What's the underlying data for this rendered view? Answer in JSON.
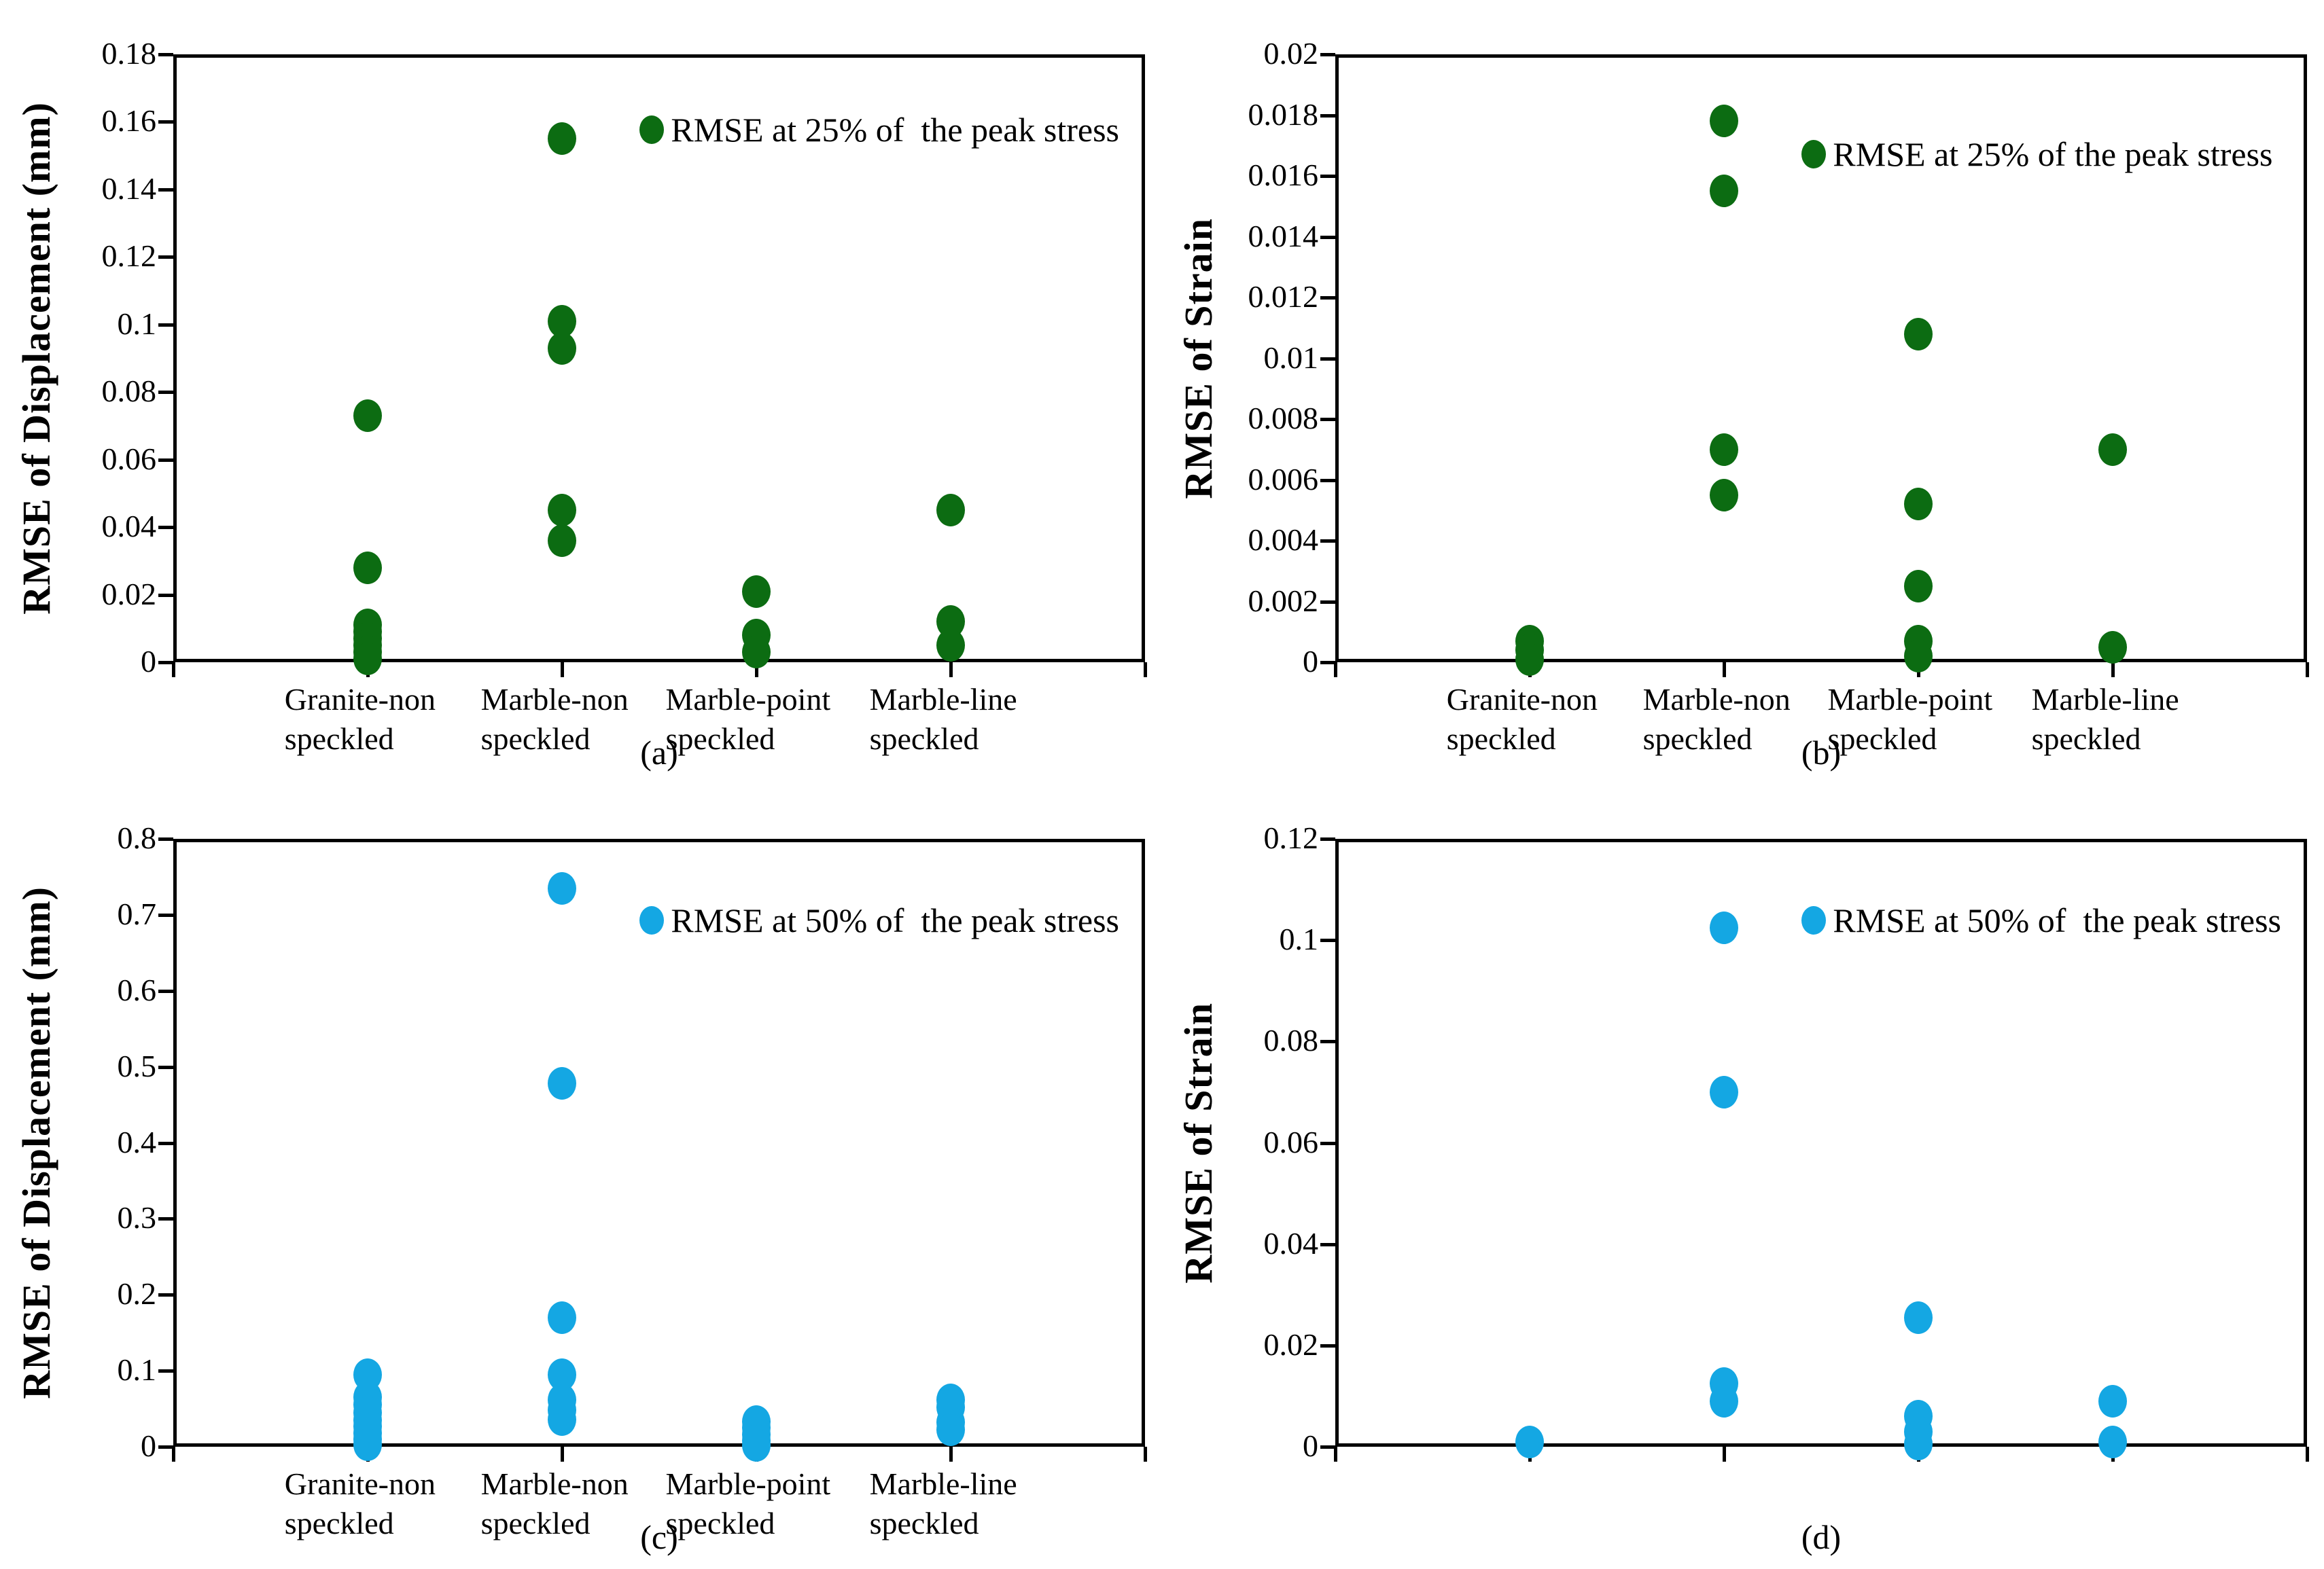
{
  "figure": {
    "description": "Four scatter plots of RMSE values for four specimen preparation types",
    "categories_shared": [
      "Granite-non speckled",
      "Marble-non speckled",
      "Marble-point speckled",
      "Marble-line speckled"
    ]
  },
  "colors": {
    "green_25pct": "#0c6c12",
    "blue_50pct": "#14a7e3",
    "axis": "#000000",
    "background": "#ffffff"
  },
  "chart_data": [
    {
      "type": "scatter",
      "caption": "(a)",
      "ylabel": "RMSE of Displacement (mm)",
      "xlabel": "",
      "ylim": [
        0,
        0.18
      ],
      "yticks": [
        "0",
        "0.02",
        "0.04",
        "0.06",
        "0.08",
        "0.1",
        "0.12",
        "0.14",
        "0.16",
        "0.18"
      ],
      "grid": false,
      "legend": "RMSE at 25% of  the peak stress",
      "legend_position": "inside-top-right",
      "legend_pos": {
        "x_frac": 0.48,
        "y_frac": 0.095
      },
      "marker_color": "#0c6c12",
      "show_category_labels": true,
      "categories": [
        [
          "Granite-non",
          "speckled"
        ],
        [
          "Marble-non",
          "speckled"
        ],
        [
          "Marble-point",
          "speckled"
        ],
        [
          "Marble-line",
          "speckled"
        ]
      ],
      "series": [
        {
          "name": "RMSE at 25% of the peak stress",
          "points_by_category": [
            [
              0.073,
              0.028,
              0.011,
              0.009,
              0.007,
              0.005,
              0.003,
              0.001
            ],
            [
              0.155,
              0.101,
              0.093,
              0.045,
              0.036
            ],
            [
              0.021,
              0.008,
              0.003
            ],
            [
              0.045,
              0.012,
              0.005
            ]
          ]
        }
      ]
    },
    {
      "type": "scatter",
      "caption": "(b)",
      "ylabel": "RMSE of Strain",
      "xlabel": "",
      "ylim": [
        0,
        0.02
      ],
      "yticks": [
        "0",
        "0.002",
        "0.004",
        "0.006",
        "0.008",
        "0.01",
        "0.012",
        "0.014",
        "0.016",
        "0.018",
        "0.02"
      ],
      "grid": false,
      "legend": "RMSE at 25% of the peak stress",
      "legend_position": "inside-top-right",
      "legend_pos": {
        "x_frac": 0.48,
        "y_frac": 0.135
      },
      "marker_color": "#0c6c12",
      "show_category_labels": true,
      "categories": [
        [
          "Granite-non",
          "speckled"
        ],
        [
          "Marble-non",
          "speckled"
        ],
        [
          "Marble-point",
          "speckled"
        ],
        [
          "Marble-line",
          "speckled"
        ]
      ],
      "series": [
        {
          "name": "RMSE at 25% of the peak stress",
          "points_by_category": [
            [
              0.0007,
              0.0004,
              0.0001
            ],
            [
              0.0178,
              0.0155,
              0.007,
              0.0055
            ],
            [
              0.0108,
              0.0052,
              0.0025,
              0.0007,
              0.0002
            ],
            [
              0.007,
              0.0005
            ]
          ]
        }
      ]
    },
    {
      "type": "scatter",
      "caption": "(c)",
      "ylabel": "RMSE of Displacement (mm)",
      "xlabel": "",
      "ylim": [
        0,
        0.8
      ],
      "yticks": [
        "0",
        "0.1",
        "0.2",
        "0.3",
        "0.4",
        "0.5",
        "0.6",
        "0.7",
        "0.8"
      ],
      "grid": false,
      "legend": "RMSE at 50% of  the peak stress",
      "legend_position": "inside-top-right",
      "legend_pos": {
        "x_frac": 0.48,
        "y_frac": 0.105
      },
      "marker_color": "#14a7e3",
      "show_category_labels": true,
      "categories": [
        [
          "Granite-non",
          "speckled"
        ],
        [
          "Marble-non",
          "speckled"
        ],
        [
          "Marble-point",
          "speckled"
        ],
        [
          "Marble-line",
          "speckled"
        ]
      ],
      "series": [
        {
          "name": "RMSE at 50% of the peak stress",
          "points_by_category": [
            [
              0.095,
              0.065,
              0.055,
              0.045,
              0.035,
              0.027,
              0.018,
              0.01,
              0.003
            ],
            [
              0.735,
              0.478,
              0.17,
              0.095,
              0.062,
              0.048,
              0.036
            ],
            [
              0.033,
              0.025,
              0.016,
              0.008,
              0.002
            ],
            [
              0.062,
              0.052,
              0.032,
              0.022
            ]
          ]
        }
      ]
    },
    {
      "type": "scatter",
      "caption": "(d)",
      "ylabel": "RMSE of Strain",
      "xlabel": "",
      "ylim": [
        0,
        0.12
      ],
      "yticks": [
        "0",
        "0.02",
        "0.04",
        "0.06",
        "0.08",
        "0.1",
        "0.12"
      ],
      "grid": false,
      "legend": "RMSE at 50% of  the peak stress",
      "legend_position": "inside-top-right",
      "legend_pos": {
        "x_frac": 0.48,
        "y_frac": 0.105
      },
      "marker_color": "#14a7e3",
      "show_category_labels": false,
      "categories": [
        [
          "Granite-non",
          "speckled"
        ],
        [
          "Marble-non",
          "speckled"
        ],
        [
          "Marble-point",
          "speckled"
        ],
        [
          "Marble-line",
          "speckled"
        ]
      ],
      "series": [
        {
          "name": "RMSE at 50% of the peak stress",
          "points_by_category": [
            [
              0.001
            ],
            [
              0.1025,
              0.07,
              0.0125,
              0.009
            ],
            [
              0.0255,
              0.006,
              0.003,
              0.0005
            ],
            [
              0.009,
              0.001
            ]
          ]
        }
      ]
    }
  ]
}
